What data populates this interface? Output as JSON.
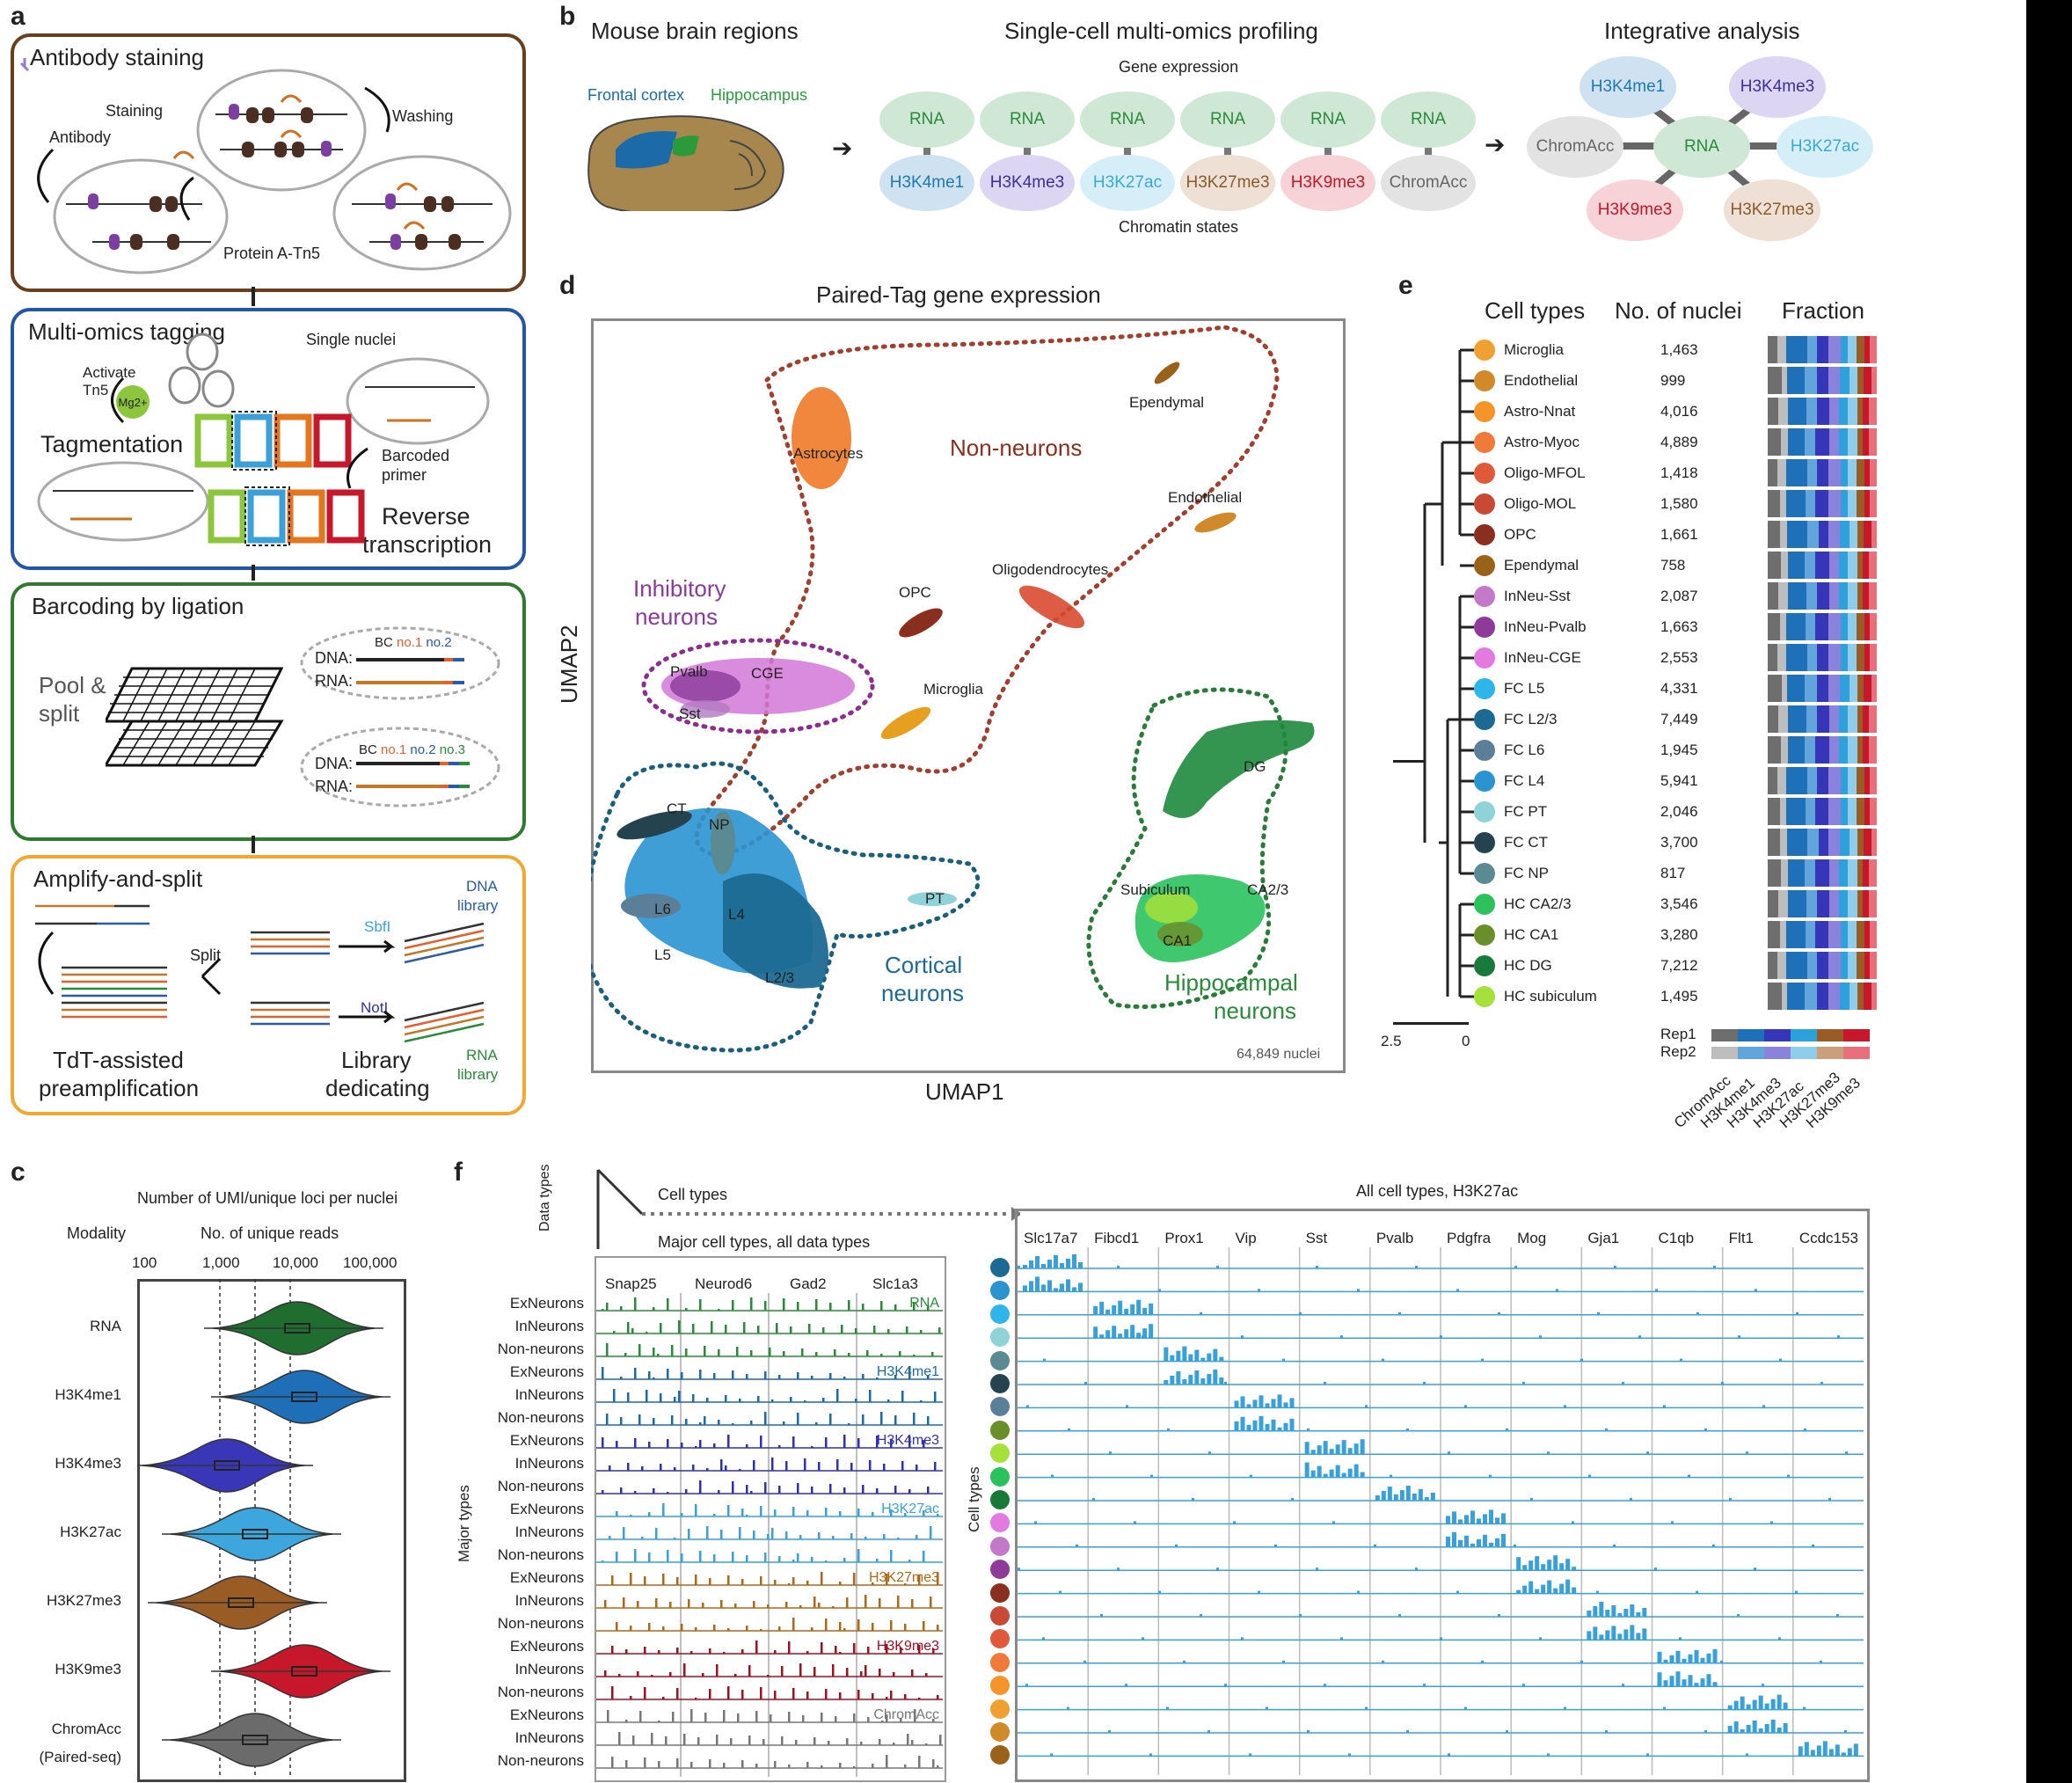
{
  "panels": {
    "a": "a",
    "b": "b",
    "c": "c",
    "d": "d",
    "e": "e",
    "f": "f"
  },
  "panel_a": {
    "box1": {
      "title": "Antibody staining",
      "staining": "Staining",
      "washing": "Washing",
      "antibody": "Antibody",
      "proteinA": "Protein A-Tn5"
    },
    "box2": {
      "title": "Multi-omics tagging",
      "activate": "Activate",
      "tn5": "Tn5",
      "mg": "Mg2+",
      "single_nuclei": "Single nuclei",
      "tagmentation": "Tagmentation",
      "barcoded": "Barcoded",
      "primer": "primer",
      "reverse": "Reverse",
      "transcription": "transcription"
    },
    "box3": {
      "title": "Barcoding by ligation",
      "pool": "Pool &",
      "split": "split",
      "dna": "DNA:",
      "rna": "RNA:",
      "bc": "BC",
      "no1": "no.1",
      "no2": "no.2",
      "no3": "no.3"
    },
    "box4": {
      "title": "Amplify-and-split",
      "split": "Split",
      "sbfi": "SbfI",
      "noti": "NotI",
      "dna_lib1": "DNA",
      "dna_lib2": "library",
      "rna_lib1": "RNA",
      "rna_lib2": "library",
      "tdt1": "TdT-assisted",
      "tdt2": "preamplification",
      "libded1": "Library",
      "libded2": "dedicating"
    }
  },
  "panel_b": {
    "title_left": "Mouse brain regions",
    "title_mid": "Single-cell multi-omics profiling",
    "title_right": "Integrative analysis",
    "frontal": "Frontal cortex",
    "hippocampus": "Hippocampus",
    "gene_expression": "Gene expression",
    "chromatin_states": "Chromatin states",
    "rna_label": "RNA",
    "pairs": [
      {
        "bottom": "H3K4me1",
        "color": "#1d78b4",
        "fill": "#cfe2f1"
      },
      {
        "bottom": "H3K4me3",
        "color": "#3b2f9b",
        "fill": "#dcd6f3"
      },
      {
        "bottom": "H3K27ac",
        "color": "#3aa9d9",
        "fill": "#d6eef8"
      },
      {
        "bottom": "H3K27me3",
        "color": "#8a5a2b",
        "fill": "#eee0d4"
      },
      {
        "bottom": "H3K9me3",
        "color": "#c0182a",
        "fill": "#f7d2d6"
      },
      {
        "bottom": "ChromAcc",
        "color": "#666666",
        "fill": "#e3e3e3"
      }
    ],
    "integ": {
      "center": "RNA",
      "top_left": "H3K4me1",
      "top_right": "H3K4me3",
      "left": "ChromAcc",
      "right": "H3K27ac",
      "bottom_left": "H3K9me3",
      "bottom_right": "H3K27me3"
    }
  },
  "panel_c": {
    "title": "Number of UMI/unique loci per nuclei",
    "modality_header": "Modality",
    "reads_header": "No. of unique reads",
    "ticks": [
      "100",
      "1,000",
      "10,000",
      "100,000"
    ],
    "modalities": [
      {
        "name": "RNA",
        "color": "#1f6e2f",
        "median_log": 4.1
      },
      {
        "name": "H3K4me1",
        "color": "#1e6fb8",
        "median_log": 4.2
      },
      {
        "name": "H3K4me3",
        "color": "#3936b8",
        "median_log": 3.1
      },
      {
        "name": "H3K27ac",
        "color": "#3da6dd",
        "median_log": 3.5
      },
      {
        "name": "H3K27me3",
        "color": "#9a5c25",
        "median_log": 3.3
      },
      {
        "name": "H3K9me3",
        "color": "#c7172b",
        "median_log": 4.2
      },
      {
        "name": "ChromAcc",
        "name2": "(Paired-seq)",
        "color": "#6b6b6b",
        "median_log": 3.5
      }
    ]
  },
  "panel_d": {
    "title": "Paired-Tag gene expression",
    "xlabel": "UMAP1",
    "ylabel": "UMAP2",
    "count": "64,849 nuclei",
    "groups": {
      "non_neurons": "Non-neurons",
      "inhib1": "Inhibitory",
      "inhib2": "neurons",
      "cort1": "Cortical",
      "cort2": "neurons",
      "hippo1": "Hippocampal",
      "hippo2": "neurons"
    },
    "clusters": [
      "Astrocytes",
      "Ependymal",
      "Endothelial",
      "Oligodendrocytes",
      "OPC",
      "Microglia",
      "Pvalb",
      "CGE",
      "Sst",
      "CT",
      "NP",
      "L6",
      "L4",
      "L5",
      "L2/3",
      "PT",
      "DG",
      "Subiculum",
      "CA2/3",
      "CA1"
    ]
  },
  "panel_e": {
    "headers": {
      "cell_types": "Cell types",
      "nuclei": "No. of nuclei",
      "fraction": "Fraction"
    },
    "scale": {
      "left": "2.5",
      "right": "0"
    },
    "rep1": "Rep1",
    "rep2": "Rep2",
    "modalities": [
      "ChromAcc",
      "H3K4me1",
      "H3K4me3",
      "H3K27ac",
      "H3K27me3",
      "H3K9me3"
    ],
    "rows": [
      {
        "name": "Microglia",
        "n": "1,463",
        "color": "#f0a030"
      },
      {
        "name": "Endothelial",
        "n": "999",
        "color": "#d08a2a"
      },
      {
        "name": "Astro-Nnat",
        "n": "4,016",
        "color": "#f5942a"
      },
      {
        "name": "Astro-Myoc",
        "n": "4,889",
        "color": "#f07a3a"
      },
      {
        "name": "Oligo-MFOL",
        "n": "1,418",
        "color": "#e05a3a"
      },
      {
        "name": "Oligo-MOL",
        "n": "1,580",
        "color": "#c84a35"
      },
      {
        "name": "OPC",
        "n": "1,661",
        "color": "#8a2f1f"
      },
      {
        "name": "Ependymal",
        "n": "758",
        "color": "#9a6218"
      },
      {
        "name": "InNeu-Sst",
        "n": "2,087",
        "color": "#c27ac8"
      },
      {
        "name": "InNeu-Pvalb",
        "n": "1,663",
        "color": "#8e3a98"
      },
      {
        "name": "InNeu-CGE",
        "n": "2,553",
        "color": "#e27ae0"
      },
      {
        "name": "FC L5",
        "n": "4,331",
        "color": "#2eb5ea"
      },
      {
        "name": "FC L2/3",
        "n": "7,449",
        "color": "#1c6a93"
      },
      {
        "name": "FC L6",
        "n": "1,945",
        "color": "#5c7f99"
      },
      {
        "name": "FC L4",
        "n": "5,941",
        "color": "#2a93d0"
      },
      {
        "name": "FC PT",
        "n": "2,046",
        "color": "#8fd3d8"
      },
      {
        "name": "FC CT",
        "n": "3,700",
        "color": "#25434e"
      },
      {
        "name": "FC NP",
        "n": "817",
        "color": "#5a8a92"
      },
      {
        "name": "HC CA2/3",
        "n": "3,546",
        "color": "#2bc25e"
      },
      {
        "name": "HC CA1",
        "n": "3,280",
        "color": "#6a8f2a"
      },
      {
        "name": "HC DG",
        "n": "7,212",
        "color": "#187a3a"
      },
      {
        "name": "HC subiculum",
        "n": "1,495",
        "color": "#a6e03a"
      }
    ],
    "rep_colors": {
      "rep1": [
        "#6e6e6e",
        "#1e70b8",
        "#3636b8",
        "#2ea0dc",
        "#9a5c25",
        "#c8172b"
      ],
      "rep2": [
        "#bdbdbd",
        "#62a4dc",
        "#8b82dc",
        "#8fcdea",
        "#c9a07a",
        "#e8707c"
      ]
    }
  },
  "panel_f": {
    "data_types": "Data",
    "data_types2": "types",
    "cell_types": "Cell  types",
    "major_title": "Major cell types, all data types",
    "major_ylabel": "Major types",
    "major_genes": [
      "Snap25",
      "Neurod6",
      "Gad2",
      "Slc1a3"
    ],
    "groups": [
      {
        "name": "RNA",
        "color": "#2a8a3a"
      },
      {
        "name": "H3K4me1",
        "color": "#1e6aa8"
      },
      {
        "name": "H3K4me3",
        "color": "#3030b0"
      },
      {
        "name": "H3K27ac",
        "color": "#3aa0d8"
      },
      {
        "name": "H3K27me3",
        "color": "#b06818"
      },
      {
        "name": "H3K9me3",
        "color": "#a01020"
      },
      {
        "name": "ChromAcc",
        "color": "#777777"
      }
    ],
    "row_names": [
      "ExNeurons",
      "InNeurons",
      "Non-neurons"
    ],
    "all_title": "All cell types, H3K27ac",
    "all_ylabel": "Cell types",
    "all_genes": [
      "Slc17a7",
      "Fibcd1",
      "Prox1",
      "Vip",
      "Sst",
      "Pvalb",
      "Pdgfra",
      "Mog",
      "Gja1",
      "C1qb",
      "Flt1",
      "Ccdc153"
    ],
    "all_row_colors": [
      "#1c6a93",
      "#2a93d0",
      "#2eb5ea",
      "#8fd3d8",
      "#5a8a92",
      "#25434e",
      "#5c7f99",
      "#6a8f2a",
      "#a6e03a",
      "#2bc25e",
      "#187a3a",
      "#e27ae0",
      "#c27ac8",
      "#8e3a98",
      "#8a2f1f",
      "#c84a35",
      "#e05a3a",
      "#f07a3a",
      "#f5942a",
      "#f0a030",
      "#d08a2a",
      "#9a6218"
    ]
  }
}
